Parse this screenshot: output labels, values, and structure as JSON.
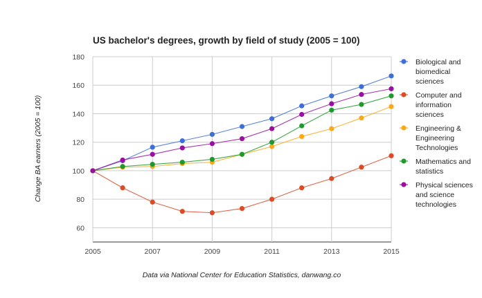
{
  "chart_data": {
    "type": "line",
    "title": "US bachelor's degrees, growth by field of study (2005 = 100)",
    "xlabel": "",
    "ylabel": "Change BA earners (2005 = 100)",
    "source": "Data via National Center for Education Statistics, danwang.co",
    "x": [
      2005,
      2006,
      2007,
      2008,
      2009,
      2010,
      2011,
      2012,
      2013,
      2014,
      2015
    ],
    "xticks": [
      "2005",
      "2007",
      "2009",
      "2011",
      "2013",
      "2015"
    ],
    "yticks": [
      "60",
      "80",
      "100",
      "120",
      "140",
      "160",
      "180"
    ],
    "xlim": [
      2005,
      2015
    ],
    "ylim": [
      50,
      180
    ],
    "grid": true,
    "legend_position": "right",
    "series": [
      {
        "name": "Biological and biomedical sciences",
        "legend_lines": [
          "Biological and",
          "biomedical",
          "sciences"
        ],
        "color": "#3d6fd6",
        "values": [
          100,
          107,
          116.5,
          121,
          125.5,
          131,
          136.5,
          145.5,
          152.5,
          159,
          166.5
        ]
      },
      {
        "name": "Computer and information sciences",
        "legend_lines": [
          "Computer and",
          "information",
          "sciences"
        ],
        "color": "#dc4a26",
        "values": [
          100,
          88,
          78,
          71.5,
          70.5,
          73.5,
          80,
          88,
          94.5,
          102.5,
          110.5
        ]
      },
      {
        "name": "Engineering & Engineering Technologies",
        "legend_lines": [
          "Engineering &",
          "Engineering",
          "Technologies"
        ],
        "color": "#fba919",
        "values": [
          100,
          102.5,
          103,
          105,
          106,
          111.5,
          117,
          124,
          129.5,
          137,
          145
        ]
      },
      {
        "name": "Mathematics and statistics",
        "legend_lines": [
          "Mathematics and",
          "statistics"
        ],
        "color": "#1e9a2c",
        "values": [
          100,
          103,
          104.5,
          106,
          108,
          111.5,
          120,
          131.5,
          142.5,
          146.5,
          152.5
        ]
      },
      {
        "name": "Physical sciences and science technologies",
        "legend_lines": [
          "Physical sciences",
          "and science",
          "technologies"
        ],
        "color": "#9a0ea2",
        "values": [
          100,
          107.5,
          111.5,
          116,
          119,
          122.5,
          129.5,
          139.5,
          147,
          153.5,
          157.5
        ]
      }
    ]
  }
}
